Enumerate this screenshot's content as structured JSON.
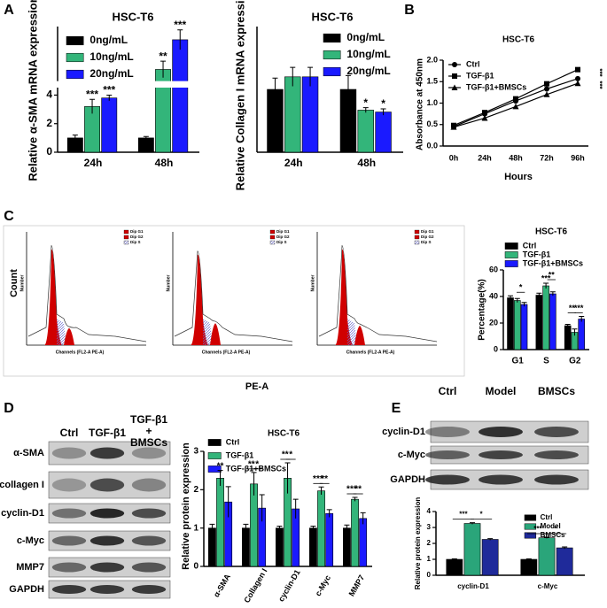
{
  "panel_labels": [
    "A",
    "B",
    "C",
    "D",
    "E"
  ],
  "chart_data": [
    {
      "type": "bar",
      "title": "HSC-T6",
      "y_label": "Relative α-SMA mRNA expression",
      "categories": [
        "24h",
        "48h"
      ],
      "series": [
        {
          "name": "0ng/mL",
          "color": "#000000",
          "values": [
            1,
            1
          ],
          "errors": [
            0.2,
            0.1
          ]
        },
        {
          "name": "10ng/mL",
          "color": "#33b57a",
          "values": [
            3.2,
            11
          ],
          "errors": [
            0.5,
            2.5
          ]
        },
        {
          "name": "20ng/mL",
          "color": "#1a1aff",
          "values": [
            3.8,
            20
          ],
          "errors": [
            0.2,
            3
          ]
        }
      ],
      "ylim": [
        0,
        24
      ],
      "y_break": [
        4.4,
        8
      ],
      "yticks": [
        0,
        2,
        4
      ],
      "annotations": [
        "***",
        "***",
        "**",
        "***"
      ]
    },
    {
      "type": "bar",
      "title": "HSC-T6",
      "y_label": "Relative Collagen I mRNA expression",
      "categories": [
        "24h",
        "48h"
      ],
      "series": [
        {
          "name": "0ng/mL",
          "color": "#000000",
          "values": [
            1,
            1
          ],
          "errors": [
            0.18,
            0.22
          ]
        },
        {
          "name": "10ng/mL",
          "color": "#33b57a",
          "values": [
            1.2,
            0.67
          ],
          "errors": [
            0.15,
            0.04
          ]
        },
        {
          "name": "20ng/mL",
          "color": "#1a1aff",
          "values": [
            1.2,
            0.64
          ],
          "errors": [
            0.15,
            0.05
          ]
        }
      ],
      "ylim": [
        0,
        2
      ],
      "annotations": [
        "*",
        "*"
      ]
    },
    {
      "type": "line",
      "title": "HSC-T6",
      "x_label": "Hours",
      "y_label": "Absorbance at 450nm",
      "categories": [
        "0h",
        "24h",
        "48h",
        "72h",
        "96h"
      ],
      "series": [
        {
          "name": "Ctrl",
          "color": "#000000",
          "marker": "circle",
          "values": [
            0.45,
            0.75,
            1.05,
            1.33,
            1.57
          ]
        },
        {
          "name": "TGF-β1",
          "color": "#000000",
          "marker": "square",
          "values": [
            0.48,
            0.78,
            1.1,
            1.45,
            1.78
          ]
        },
        {
          "name": "TGF-β1+BMSCs",
          "color": "#000000",
          "marker": "triangle",
          "values": [
            0.44,
            0.65,
            0.92,
            1.2,
            1.46
          ]
        }
      ],
      "ylim": [
        0,
        2
      ],
      "yticks": [
        {
          "value": 0,
          "label": "0.0"
        },
        0.5,
        {
          "value": 1,
          "label": "1.0"
        },
        1.5,
        {
          "value": 2,
          "label": "2.0"
        }
      ],
      "annotations": [
        "***",
        "***"
      ]
    },
    {
      "type": "bar",
      "title": "HSC-T6",
      "y_label": "Percentage(%)",
      "categories": [
        "G1",
        "S",
        "G2"
      ],
      "series": [
        {
          "name": "Ctrl",
          "color": "#000000",
          "values": [
            39,
            41,
            18
          ],
          "errors": [
            1.5,
            1.5,
            1
          ]
        },
        {
          "name": "TGF-β1",
          "color": "#33b57a",
          "values": [
            37,
            48,
            13
          ],
          "errors": [
            1.5,
            2,
            2.5
          ]
        },
        {
          "name": "TGF-β1+BMSCs",
          "color": "#1a1aff",
          "values": [
            34,
            42,
            23
          ],
          "errors": [
            1.5,
            1.5,
            2
          ]
        }
      ],
      "ylim": [
        0,
        60
      ],
      "yticks": [
        0,
        20,
        40,
        60
      ],
      "annotations": [
        "*",
        "***",
        "**",
        "**",
        "***"
      ]
    },
    {
      "type": "bar",
      "title": "HSC-T6",
      "y_label": "Relative protein expression",
      "categories": [
        "α-SMA",
        "Collagen I",
        "cyclin-D1",
        "c-Myc",
        "MMP7"
      ],
      "series": [
        {
          "name": "Ctrl",
          "color": "#000000",
          "values": [
            1,
            1,
            1,
            1,
            1
          ],
          "errors": [
            0.1,
            0.1,
            0.05,
            0.05,
            0.08
          ]
        },
        {
          "name": "TGF-β1",
          "color": "#33b57a",
          "values": [
            2.3,
            2.15,
            2.3,
            1.97,
            1.75
          ],
          "errors": [
            0.2,
            0.3,
            0.4,
            0.1,
            0.05
          ]
        },
        {
          "name": "TGF-β1+BMSCs",
          "color": "#1a1aff",
          "values": [
            1.68,
            1.52,
            1.5,
            1.38,
            1.25
          ],
          "errors": [
            0.4,
            0.35,
            0.25,
            0.1,
            0.15
          ]
        }
      ],
      "ylim": [
        0,
        3
      ],
      "yticks": [
        0,
        1,
        2,
        3
      ],
      "annotations": [
        "**",
        "**",
        "*",
        "**",
        "*",
        "***",
        "**",
        "***",
        "**"
      ]
    },
    {
      "type": "bar",
      "y_label": "Relative protein expression",
      "categories": [
        "cyclin-D1",
        "c-Myc"
      ],
      "series": [
        {
          "name": "Ctrl",
          "color": "#000000",
          "values": [
            1,
            1
          ],
          "errors": [
            0.03,
            0.03
          ]
        },
        {
          "name": "Model",
          "color": "#2aa57a",
          "values": [
            3.25,
            2.35
          ],
          "errors": [
            0.05,
            0.04
          ]
        },
        {
          "name": "BMSCs",
          "color": "#1f2a9a",
          "values": [
            2.25,
            1.72
          ],
          "errors": [
            0.05,
            0.06
          ]
        }
      ],
      "ylim": [
        0,
        4
      ],
      "yticks": [
        0,
        1,
        2,
        3,
        4
      ],
      "annotations": [
        "***",
        "*",
        "***",
        "*"
      ]
    }
  ],
  "flow_cytometry": {
    "y_label": "Count",
    "x_label": "PE-A",
    "panels": [
      {
        "y_axis": "Number",
        "x_axis": "Channels (FL2-A PE-A)",
        "legend": [
          "Dip G1",
          "Dip G2",
          "Dip S"
        ]
      },
      {
        "y_axis": "Number",
        "x_axis": "Channels (FL2-A PE-A)",
        "legend": [
          "Dip G1",
          "Dip G2",
          "Dip S"
        ]
      },
      {
        "y_axis": "Number",
        "x_axis": "Channels (FL2-A PE-A)",
        "legend": [
          "Dip G1",
          "Dip G2",
          "Dip S"
        ]
      }
    ]
  },
  "western_blots": [
    {
      "columns": [
        "Ctrl",
        "TGF-β1",
        "TGF-β1 + BMSCs"
      ],
      "rows": [
        "α-SMA",
        "collagen I",
        "cyclin-D1",
        "c-Myc",
        "MMP7",
        "GAPDH"
      ]
    },
    {
      "columns": [
        "Ctrl",
        "Model",
        "BMSCs"
      ],
      "rows": [
        "cyclin-D1",
        "c-Myc",
        "GAPDH"
      ]
    }
  ]
}
